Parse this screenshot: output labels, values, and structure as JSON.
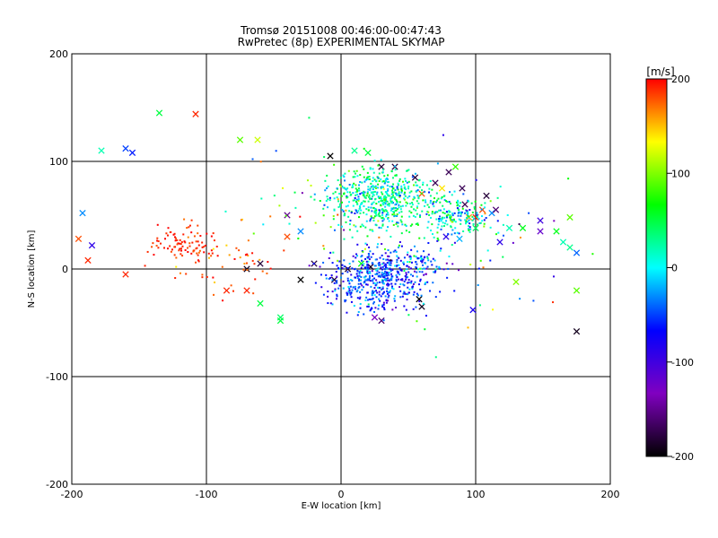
{
  "chart_data": {
    "type": "scatter",
    "title": "Tromsø 20151008 00:46:00-00:47:43",
    "subtitle": "RwPretec (8p) EXPERIMENTAL SKYMAP",
    "xlabel": "E-W location [km]",
    "ylabel": "N-S location [km]",
    "xlim": [
      -200,
      200
    ],
    "ylim": [
      -200,
      200
    ],
    "xticks": [
      "-200",
      "-100",
      "0",
      "100",
      "200"
    ],
    "yticks": [
      "-200",
      "-100",
      "0",
      "100",
      "200"
    ],
    "grid": true,
    "markers": [
      "dot",
      "x"
    ],
    "colorbar": {
      "label": "[m/s]",
      "range": [
        -200,
        200
      ],
      "ticks": [
        "200",
        "100",
        "0",
        "-100",
        "-200"
      ],
      "colormap": [
        "#000000",
        "#8000c0",
        "#0000ff",
        "#00ffff",
        "#00ff00",
        "#ffff00",
        "#ff0000"
      ]
    },
    "points": [
      [
        -195,
        28,
        180,
        "x"
      ],
      [
        -188,
        8,
        190,
        "x"
      ],
      [
        -185,
        22,
        -90,
        "x"
      ],
      [
        -192,
        52,
        -30,
        "x"
      ],
      [
        -178,
        110,
        20,
        "x"
      ],
      [
        -160,
        112,
        -50,
        "x"
      ],
      [
        -155,
        108,
        -60,
        "x"
      ],
      [
        -135,
        145,
        50,
        "x"
      ],
      [
        -108,
        144,
        190,
        "x"
      ],
      [
        -160,
        -5,
        190,
        "x"
      ],
      [
        -85,
        -20,
        190,
        "x"
      ],
      [
        -60,
        -32,
        50,
        "x"
      ],
      [
        -45,
        -45,
        40,
        "x"
      ],
      [
        -45,
        -48,
        50,
        "x"
      ],
      [
        -70,
        -20,
        190,
        "x"
      ],
      [
        -75,
        120,
        90,
        "x"
      ],
      [
        -62,
        120,
        120,
        "x"
      ],
      [
        -70,
        0,
        -190,
        "x"
      ],
      [
        -60,
        5,
        -180,
        "x"
      ],
      [
        -40,
        50,
        -150,
        "x"
      ],
      [
        -40,
        30,
        180,
        "x"
      ],
      [
        -30,
        35,
        -30,
        "x"
      ],
      [
        -30,
        -10,
        -200,
        "x"
      ],
      [
        -8,
        105,
        -200,
        "x"
      ],
      [
        10,
        110,
        30,
        "x"
      ],
      [
        20,
        108,
        50,
        "x"
      ],
      [
        30,
        95,
        -180,
        "x"
      ],
      [
        40,
        95,
        -180,
        "x"
      ],
      [
        55,
        85,
        -180,
        "x"
      ],
      [
        60,
        70,
        180,
        "x"
      ],
      [
        70,
        80,
        -170,
        "x"
      ],
      [
        75,
        75,
        140,
        "x"
      ],
      [
        80,
        90,
        -170,
        "x"
      ],
      [
        85,
        95,
        80,
        "x"
      ],
      [
        90,
        75,
        -170,
        "x"
      ],
      [
        92,
        60,
        -170,
        "x"
      ],
      [
        100,
        48,
        190,
        "x"
      ],
      [
        105,
        55,
        180,
        "x"
      ],
      [
        108,
        68,
        -180,
        "x"
      ],
      [
        112,
        52,
        -30,
        "x"
      ],
      [
        115,
        55,
        -160,
        "x"
      ],
      [
        118,
        25,
        -90,
        "x"
      ],
      [
        125,
        38,
        20,
        "x"
      ],
      [
        130,
        -12,
        100,
        "x"
      ],
      [
        135,
        38,
        60,
        "x"
      ],
      [
        148,
        45,
        -100,
        "x"
      ],
      [
        148,
        35,
        -120,
        "x"
      ],
      [
        160,
        35,
        60,
        "x"
      ],
      [
        165,
        25,
        20,
        "x"
      ],
      [
        170,
        48,
        90,
        "x"
      ],
      [
        170,
        20,
        30,
        "x"
      ],
      [
        175,
        15,
        -40,
        "x"
      ],
      [
        175,
        -20,
        90,
        "x"
      ],
      [
        175,
        -58,
        -190,
        "x"
      ],
      [
        58,
        -28,
        -200,
        "x"
      ],
      [
        60,
        -35,
        -190,
        "x"
      ],
      [
        25,
        -45,
        -130,
        "x"
      ],
      [
        30,
        -48,
        -160,
        "x"
      ],
      [
        95,
        48,
        160,
        "x"
      ],
      [
        100,
        38,
        40,
        "x"
      ],
      [
        98,
        -38,
        -80,
        "x"
      ],
      [
        88,
        28,
        -20,
        "x"
      ],
      [
        78,
        30,
        -90,
        "x"
      ],
      [
        -20,
        5,
        -180,
        "x"
      ],
      [
        -5,
        -10,
        -180,
        "x"
      ],
      [
        5,
        0,
        -180,
        "x"
      ],
      [
        15,
        5,
        60,
        "x"
      ],
      [
        22,
        2,
        -190,
        "x"
      ]
    ]
  }
}
